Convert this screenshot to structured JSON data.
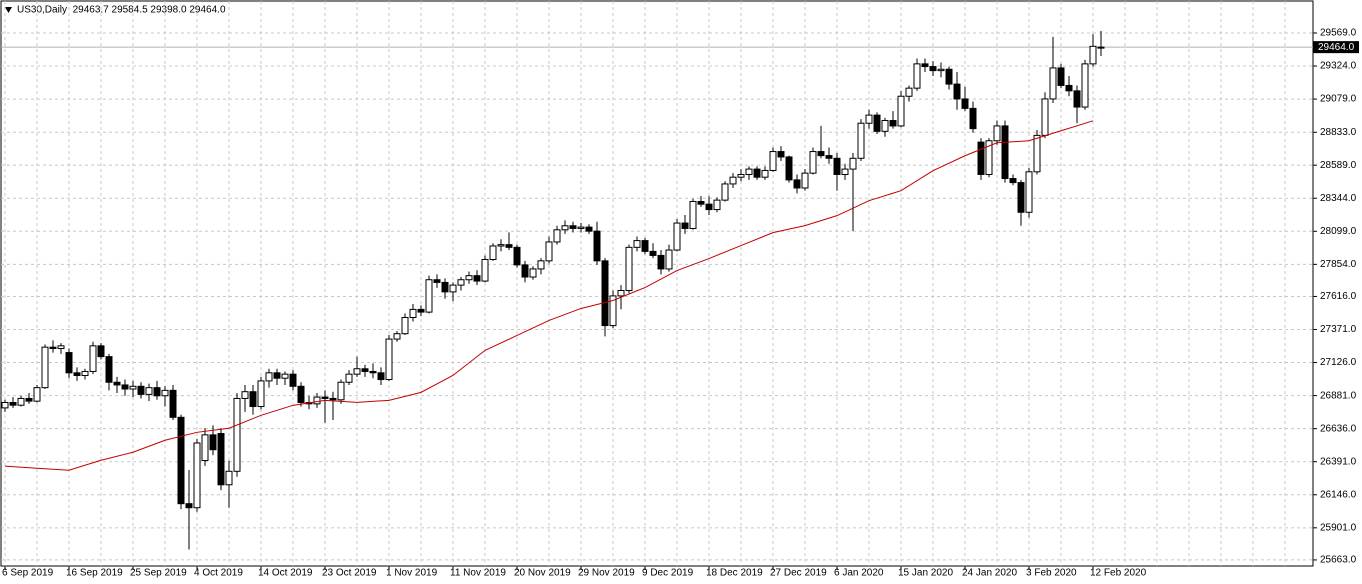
{
  "chart_data": {
    "type": "candlestick",
    "title": "US30,Daily  29463.7 29584.5 29398.0 29464.0",
    "categories": [
      "6 Sep 2019",
      null,
      null,
      null,
      null,
      null,
      null,
      null,
      "16 Sep 2019",
      null,
      null,
      null,
      null,
      null,
      null,
      null,
      "25 Sep 2019",
      null,
      null,
      null,
      null,
      null,
      null,
      null,
      "4 Oct 2019",
      null,
      null,
      null,
      null,
      null,
      null,
      null,
      "14 Oct 2019",
      null,
      null,
      null,
      null,
      null,
      null,
      null,
      "23 Oct 2019",
      null,
      null,
      null,
      null,
      null,
      null,
      null,
      "1 Nov 2019",
      null,
      null,
      null,
      null,
      null,
      null,
      null,
      "11 Nov 2019",
      null,
      null,
      null,
      null,
      null,
      null,
      null,
      "20 Nov 2019",
      null,
      null,
      null,
      null,
      null,
      null,
      null,
      "29 Nov 2019",
      null,
      null,
      null,
      null,
      null,
      null,
      null,
      "9 Dec 2019",
      null,
      null,
      null,
      null,
      null,
      null,
      null,
      "18 Dec 2019",
      null,
      null,
      null,
      null,
      null,
      null,
      null,
      "27 Dec 2019",
      null,
      null,
      null,
      null,
      null,
      null,
      null,
      "6 Jan 2020",
      null,
      null,
      null,
      null,
      null,
      null,
      null,
      "15 Jan 2020",
      null,
      null,
      null,
      null,
      null,
      null,
      null,
      "24 Jan 2020",
      null,
      null,
      null,
      null,
      null,
      null,
      null,
      "3 Feb 2020",
      null,
      null,
      null,
      null,
      null,
      null,
      null,
      "12 Feb 2020",
      null
    ],
    "open": [
      26790,
      26830,
      26810,
      26860,
      26840,
      26940,
      27240,
      27230,
      27200,
      27050,
      27030,
      27060,
      27250,
      27170,
      26980,
      26960,
      26930,
      26950,
      26890,
      26940,
      26880,
      26920,
      26720,
      26080,
      26050,
      26400,
      26590,
      26600,
      26220,
      26320,
      26860,
      26910,
      26800,
      26990,
      27050,
      27010,
      27040,
      26950,
      26830,
      26820,
      26870,
      26860,
      26850,
      26980,
      27040,
      27080,
      27060,
      27050,
      27000,
      27300,
      27340,
      27460,
      27520,
      27500,
      27740,
      27720,
      27650,
      27700,
      27740,
      27770,
      27730,
      27890,
      27990,
      28000,
      27980,
      27850,
      27760,
      27820,
      27880,
      28020,
      28110,
      28140,
      28120,
      28130,
      28100,
      27880,
      27400,
      27620,
      27660,
      27980,
      28030,
      27950,
      27920,
      27820,
      27960,
      28160,
      28120,
      28320,
      28300,
      28260,
      28330,
      28450,
      28500,
      28520,
      28560,
      28500,
      28550,
      28690,
      28650,
      28480,
      28420,
      28530,
      28690,
      28660,
      28640,
      28520,
      28560,
      28640,
      28900,
      28960,
      28840,
      28920,
      28880,
      29100,
      29160,
      29340,
      29320,
      29290,
      29300,
      29190,
      29080,
      29010,
      28760,
      28520,
      28770,
      28880,
      28490,
      28460,
      28240,
      28540,
      28810,
      29080,
      29310,
      29180,
      29140,
      29020,
      29340,
      29463.7
    ],
    "high": [
      26850,
      26870,
      26880,
      26900,
      26960,
      27260,
      27290,
      27270,
      27230,
      27090,
      27080,
      27280,
      27270,
      27190,
      27020,
      27000,
      26990,
      26980,
      26970,
      26990,
      26950,
      26960,
      26740,
      26330,
      26560,
      26640,
      26660,
      26640,
      26400,
      26900,
      26960,
      26960,
      27020,
      27080,
      27080,
      27060,
      27070,
      26980,
      26880,
      26900,
      26920,
      26910,
      27000,
      27070,
      27170,
      27110,
      27120,
      27090,
      27330,
      27360,
      27490,
      27560,
      27550,
      27770,
      27780,
      27750,
      27720,
      27760,
      27800,
      27810,
      27920,
      28010,
      28040,
      28090,
      28000,
      27880,
      27840,
      27900,
      28060,
      28140,
      28180,
      28170,
      28160,
      28150,
      28170,
      27900,
      27660,
      27700,
      28000,
      28060,
      28050,
      28010,
      27960,
      28000,
      28190,
      28220,
      28340,
      28360,
      28360,
      28350,
      28470,
      28530,
      28560,
      28580,
      28580,
      28580,
      28720,
      28730,
      28660,
      28520,
      28560,
      28720,
      28880,
      28720,
      28680,
      28600,
      28680,
      28930,
      29000,
      28980,
      28940,
      28990,
      29140,
      29180,
      29380,
      29380,
      29360,
      29350,
      29320,
      29280,
      29170,
      29060,
      28790,
      28790,
      28920,
      28920,
      28520,
      28480,
      28570,
      28850,
      29130,
      29540,
      29340,
      29250,
      29180,
      29370,
      29560,
      29584.5
    ],
    "low": [
      26760,
      26790,
      26800,
      26820,
      26830,
      26930,
      27200,
      27190,
      27010,
      26990,
      27000,
      27040,
      27150,
      26920,
      26900,
      26880,
      26870,
      26860,
      26840,
      26850,
      26800,
      26700,
      26040,
      25740,
      26020,
      26360,
      26440,
      26180,
      26050,
      26280,
      26760,
      26740,
      26780,
      26940,
      26960,
      26960,
      26920,
      26800,
      26780,
      26790,
      26680,
      26700,
      26820,
      26960,
      27020,
      27020,
      27010,
      26960,
      26990,
      27280,
      27330,
      27430,
      27470,
      27490,
      27680,
      27600,
      27580,
      27660,
      27710,
      27700,
      27720,
      27880,
      27950,
      27960,
      27830,
      27720,
      27740,
      27780,
      27860,
      28000,
      28080,
      28090,
      28090,
      28080,
      27850,
      27320,
      27380,
      27520,
      27640,
      27950,
      27930,
      27900,
      27780,
      27800,
      27950,
      28080,
      28110,
      28280,
      28220,
      28240,
      28320,
      28420,
      28470,
      28480,
      28480,
      28480,
      28540,
      28620,
      28460,
      28380,
      28400,
      28520,
      28640,
      28600,
      28400,
      28480,
      28100,
      28620,
      28860,
      28820,
      28800,
      28860,
      28870,
      29060,
      29140,
      29280,
      29250,
      29240,
      29150,
      29000,
      28990,
      28830,
      28480,
      28500,
      28740,
      28460,
      28440,
      28140,
      28200,
      28520,
      28790,
      29050,
      29160,
      29100,
      28900,
      29000,
      29320,
      29398.0
    ],
    "close": [
      26830,
      26810,
      26860,
      26840,
      26940,
      27240,
      27230,
      27250,
      27050,
      27030,
      27060,
      27250,
      27170,
      26980,
      26960,
      26930,
      26950,
      26890,
      26940,
      26880,
      26920,
      26720,
      26080,
      26050,
      26530,
      26590,
      26480,
      26220,
      26320,
      26860,
      26910,
      26800,
      26990,
      27050,
      27010,
      27040,
      26950,
      26830,
      26820,
      26870,
      26860,
      26850,
      26980,
      27040,
      27080,
      27060,
      27050,
      27000,
      27300,
      27340,
      27460,
      27520,
      27500,
      27740,
      27720,
      27650,
      27700,
      27740,
      27770,
      27730,
      27890,
      27990,
      28000,
      27980,
      27850,
      27760,
      27820,
      27880,
      28020,
      28110,
      28140,
      28120,
      28130,
      28100,
      27880,
      27400,
      27620,
      27660,
      27980,
      28030,
      27950,
      27920,
      27820,
      27960,
      28160,
      28120,
      28320,
      28300,
      28260,
      28330,
      28450,
      28500,
      28520,
      28560,
      28500,
      28550,
      28690,
      28650,
      28480,
      28420,
      28530,
      28690,
      28660,
      28640,
      28520,
      28560,
      28640,
      28900,
      28960,
      28840,
      28920,
      28880,
      29100,
      29160,
      29340,
      29320,
      29290,
      29300,
      29190,
      29080,
      29010,
      28860,
      28520,
      28770,
      28880,
      28490,
      28460,
      28240,
      28540,
      28810,
      29080,
      29310,
      29180,
      29140,
      29020,
      29340,
      29470,
      29464.0
    ],
    "moving_average": {
      "color": "#c00000",
      "x": [
        0,
        4,
        8,
        12,
        16,
        20,
        24,
        28,
        32,
        36,
        40,
        44,
        48,
        52,
        56,
        60,
        64,
        68,
        72,
        76,
        80,
        84,
        88,
        92,
        96,
        100,
        104,
        108,
        112,
        116,
        120,
        124,
        128,
        132,
        136
      ],
      "values": [
        26358,
        26343,
        26328,
        26402,
        26461,
        26550,
        26609,
        26639,
        26735,
        26809,
        26846,
        26831,
        26846,
        26905,
        27031,
        27216,
        27327,
        27438,
        27527,
        27586,
        27682,
        27808,
        27897,
        27993,
        28089,
        28141,
        28215,
        28326,
        28400,
        28548,
        28659,
        28755,
        28770,
        28844,
        28918
      ]
    },
    "current_price": {
      "value": 29464.0,
      "label": "29464.0"
    },
    "ylim": [
      25618,
      29806
    ],
    "yticks": [
      {
        "value": 29569,
        "label": "29569.0"
      },
      {
        "value": 29324,
        "label": "29324.0"
      },
      {
        "value": 29079,
        "label": "29079.0"
      },
      {
        "value": 28833,
        "label": "28833.0"
      },
      {
        "value": 28589,
        "label": "28589.0"
      },
      {
        "value": 28344,
        "label": "28344.0"
      },
      {
        "value": 28099,
        "label": "28099.0"
      },
      {
        "value": 27854,
        "label": "27854.0"
      },
      {
        "value": 27616,
        "label": "27616.0"
      },
      {
        "value": 27371,
        "label": "27371.0"
      },
      {
        "value": 27126,
        "label": "27126.0"
      },
      {
        "value": 26881,
        "label": "26881.0"
      },
      {
        "value": 26636,
        "label": "26636.0"
      },
      {
        "value": 26391,
        "label": "26391.0"
      },
      {
        "value": 26146,
        "label": "26146.0"
      },
      {
        "value": 25901,
        "label": "25901.0"
      },
      {
        "value": 25663,
        "label": "25663.0"
      }
    ],
    "grid": true,
    "up_color": "#ffffff",
    "down_color": "#000000"
  }
}
